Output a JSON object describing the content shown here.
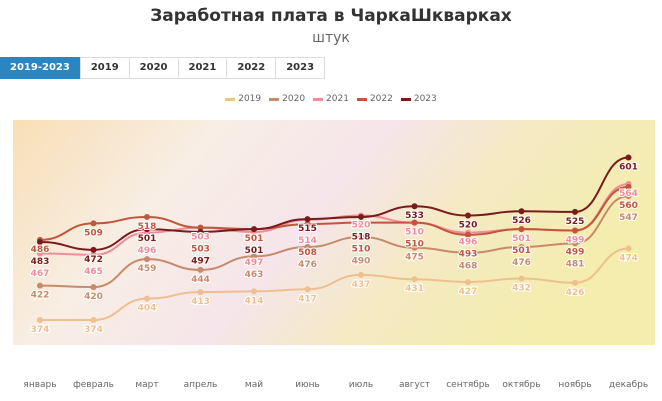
{
  "chart_data": {
    "type": "line",
    "title": "Заработная плата в ЧаркаШкварках",
    "subtitle": "штук",
    "categories": [
      "январь",
      "февраль",
      "март",
      "апрель",
      "май",
      "июнь",
      "июль",
      "август",
      "сентябрь",
      "октябрь",
      "ноябрь",
      "декабрь"
    ],
    "series": [
      {
        "name": "2019",
        "color": "#eebf8f",
        "values": [
          374,
          374,
          404,
          413,
          414,
          417,
          437,
          431,
          427,
          432,
          426,
          474
        ]
      },
      {
        "name": "2020",
        "color": "#c68a6c",
        "values": [
          422,
          420,
          459,
          444,
          463,
          476,
          490,
          475,
          468,
          476,
          481,
          547
        ]
      },
      {
        "name": "2021",
        "color": "#ef8c9b",
        "values": [
          467,
          465,
          496,
          503,
          497,
          514,
          520,
          510,
          496,
          501,
          499,
          564
        ]
      },
      {
        "name": "2022",
        "color": "#c0563c",
        "values": [
          486,
          509,
          518,
          503,
          501,
          508,
          510,
          510,
          493,
          501,
          499,
          560
        ]
      },
      {
        "name": "2023",
        "color": "#7a1b1b",
        "values": [
          483,
          472,
          501,
          497,
          501,
          515,
          518,
          533,
          520,
          526,
          525,
          601
        ]
      }
    ],
    "legend_position": "top-center",
    "grid": false
  },
  "tabs": [
    "2019-2023",
    "2019",
    "2020",
    "2021",
    "2022",
    "2023"
  ]
}
